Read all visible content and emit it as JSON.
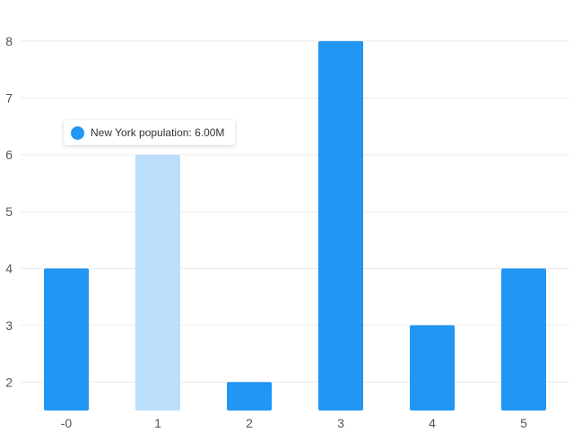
{
  "chart_data": {
    "type": "bar",
    "categories": [
      "-0",
      "1",
      "2",
      "3",
      "4",
      "5"
    ],
    "values": [
      4,
      6,
      2,
      8,
      3,
      4
    ],
    "y_ticks": [
      "2",
      "3",
      "4",
      "5",
      "6",
      "7",
      "8"
    ],
    "ylim": [
      1.5,
      8.5
    ],
    "grid": true,
    "highlighted_index": 1,
    "colors": {
      "bar": "#2196f3",
      "bar_highlight": "#bbdefb",
      "grid": "#ebebeb",
      "tick_text": "#555555"
    }
  },
  "tooltip": {
    "label": "New York population: 6.00M",
    "marker_color": "#2196f3"
  }
}
